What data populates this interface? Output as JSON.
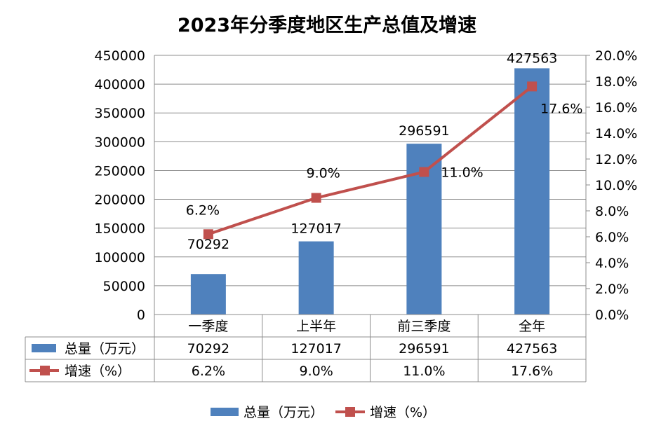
{
  "chart_data": {
    "type": "bar",
    "title": "2023年分季度地区生产总值及增速",
    "categories": [
      "一季度",
      "上半年",
      "前三季度",
      "全年"
    ],
    "series": [
      {
        "name": "总量（万元）",
        "type": "bar",
        "axis": "left",
        "color": "#4F81BD",
        "values": [
          70292,
          127017,
          296591,
          427563
        ]
      },
      {
        "name": "增速（%）",
        "type": "line",
        "axis": "right",
        "color": "#C0504D",
        "values": [
          6.2,
          9.0,
          11.0,
          17.6
        ]
      }
    ],
    "ylim_left": [
      0,
      450000
    ],
    "ylim_right": [
      0,
      20
    ],
    "yticks_left": [
      "0",
      "50000",
      "100000",
      "150000",
      "200000",
      "250000",
      "300000",
      "350000",
      "400000",
      "450000"
    ],
    "yticks_right": [
      "0.0%",
      "2.0%",
      "4.0%",
      "6.0%",
      "8.0%",
      "10.0%",
      "12.0%",
      "14.0%",
      "16.0%",
      "18.0%",
      "20.0%"
    ],
    "bar_labels": [
      "70292",
      "127017",
      "296591",
      "427563"
    ],
    "line_labels": [
      "6.2%",
      "9.0%",
      "11.0%",
      "17.6%"
    ],
    "data_table": {
      "rows": [
        {
          "label": "总量（万元）",
          "values": [
            "70292",
            "127017",
            "296591",
            "427563"
          ]
        },
        {
          "label": "增速（%）",
          "values": [
            "6.2%",
            "9.0%",
            "11.0%",
            "17.6%"
          ]
        }
      ]
    },
    "legend": {
      "position": "bottom",
      "items": [
        "总量（万元）",
        "增速（%）"
      ]
    },
    "grid": true
  }
}
